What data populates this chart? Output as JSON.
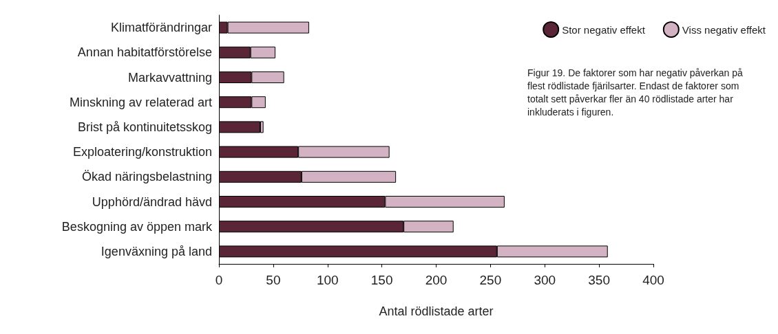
{
  "chart_data": {
    "type": "bar",
    "orientation": "horizontal",
    "stacked": true,
    "xlabel": "Antal rödlistade arter",
    "categories": [
      "Klimatförändringar",
      "Annan habitatförstörelse",
      "Markavvattning",
      "Minskning av relaterad art",
      "Brist på kontinuitetsskog",
      "Exploatering/konstruktion",
      "Ökad näringsbelastning",
      "Upphörd/ändrad hävd",
      "Beskogning av öppen mark",
      "Igenväxning på land"
    ],
    "series": [
      {
        "name": "Stor negativ effekt",
        "color": "#5a2537",
        "values": [
          8,
          29,
          30,
          30,
          38,
          73,
          76,
          153,
          170,
          256
        ]
      },
      {
        "name": "Viss negativ effekt",
        "color": "#d3b3c3",
        "values": [
          75,
          23,
          30,
          13,
          3,
          84,
          87,
          110,
          46,
          102
        ]
      }
    ],
    "xlim": [
      0,
      400
    ],
    "xticks": [
      0,
      50,
      100,
      150,
      200,
      250,
      300,
      350,
      400
    ],
    "grid": false,
    "legend": "top right",
    "annotations": [
      "Figur 19. De faktorer som har negativ påverkan på flest rödlistade fjärilsarter. Endast de faktorer som totalt sett påverkar fler än 40 rödlistade arter har inkluderats i figuren."
    ]
  }
}
